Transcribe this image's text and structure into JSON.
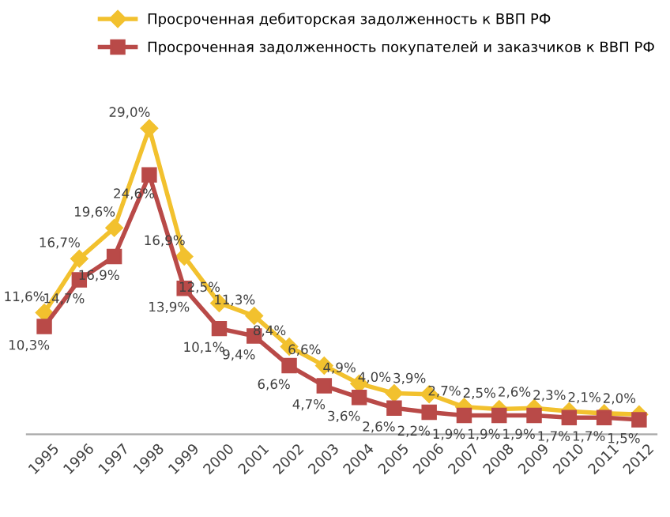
{
  "chart_data": {
    "type": "line",
    "categories": [
      "1995",
      "1996",
      "1997",
      "1998",
      "1999",
      "2000",
      "2001",
      "2002",
      "2003",
      "2004",
      "2005",
      "2006",
      "2007",
      "2008",
      "2009",
      "2010",
      "2011",
      "2012"
    ],
    "series": [
      {
        "name": "Просроченная дебиторская задолженность к ВВП РФ",
        "color": "#f2c12e",
        "marker": "diamond",
        "values": [
          11.6,
          16.7,
          19.6,
          29.0,
          16.9,
          12.5,
          11.3,
          8.4,
          6.6,
          4.9,
          4.0,
          3.9,
          2.7,
          2.5,
          2.6,
          2.3,
          2.1,
          2.0
        ],
        "value_labels": [
          "11,6%",
          "16,7%",
          "19,6%",
          "29,0%",
          "16,9%",
          "12,5%",
          "11,3%",
          "8,4%",
          "6,6%",
          "4,9%",
          "4,0%",
          "3,9%",
          "2,7%",
          "2,5%",
          "2,6%",
          "2,3%",
          "2,1%",
          "2,0%"
        ]
      },
      {
        "name": "Просроченная задолженность покупателей и заказчиков к ВВП РФ",
        "color": "#b94a48",
        "marker": "square",
        "values": [
          10.3,
          14.7,
          16.9,
          24.6,
          13.9,
          10.1,
          9.4,
          6.6,
          4.7,
          3.6,
          2.6,
          2.2,
          1.9,
          1.9,
          1.9,
          1.7,
          1.7,
          1.5
        ],
        "value_labels": [
          "10,3%",
          "14,7%",
          "16,9%",
          "24,6%",
          "13,9%",
          "10,1%",
          "9,4%",
          "6,6%",
          "4,7%",
          "3,6%",
          "2,6%",
          "2,2%",
          "1,9%",
          "1,9%",
          "1,9%",
          "1,7%",
          "1,7%",
          "1,5%"
        ]
      }
    ],
    "legend": "top",
    "grid": false,
    "tick_labels": "x"
  }
}
